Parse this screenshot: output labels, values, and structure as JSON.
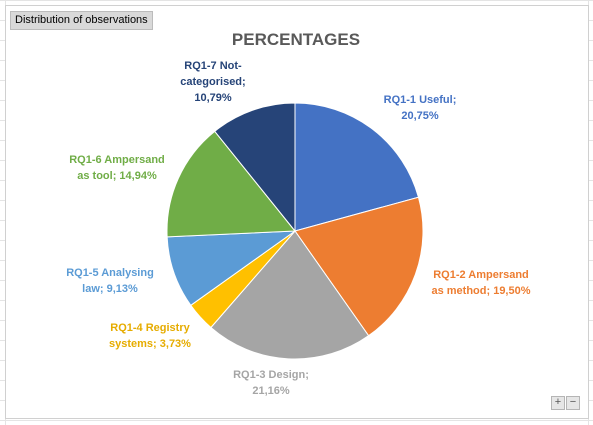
{
  "sheet_tab": {
    "label": "Distribution of observations"
  },
  "zoom": {
    "plus": "+",
    "minus": "−"
  },
  "chart_data": {
    "type": "pie",
    "title": "PERCENTAGES",
    "start_angle_deg": 0,
    "direction": "clockwise",
    "slices": [
      {
        "name": "RQ1-1 Useful",
        "value": 20.75,
        "label_lines": [
          "RQ1-1 Useful;",
          "20,75%"
        ],
        "color": "#4472c4",
        "label_color": "#4472c4"
      },
      {
        "name": "RQ1-2 Ampersand as method",
        "value": 19.5,
        "label_lines": [
          "RQ1-2 Ampersand",
          "as method; 19,50%"
        ],
        "color": "#ed7d31",
        "label_color": "#ed7d31"
      },
      {
        "name": "RQ1-3 Design",
        "value": 21.16,
        "label_lines": [
          "RQ1-3 Design;",
          "21,16%"
        ],
        "color": "#a5a5a5",
        "label_color": "#a5a5a5"
      },
      {
        "name": "RQ1-4 Registry systems",
        "value": 3.73,
        "label_lines": [
          "RQ1-4 Registry",
          "systems; 3,73%"
        ],
        "color": "#ffc000",
        "label_color": "#e6ac00"
      },
      {
        "name": "RQ1-5 Analysing law",
        "value": 9.13,
        "label_lines": [
          "RQ1-5 Analysing",
          "law; 9,13%"
        ],
        "color": "#5b9bd5",
        "label_color": "#5b9bd5"
      },
      {
        "name": "RQ1-6 Ampersand as tool",
        "value": 14.94,
        "label_lines": [
          "RQ1-6 Ampersand",
          "as tool; 14,94%"
        ],
        "color": "#70ad47",
        "label_color": "#70ad47"
      },
      {
        "name": "RQ1-7 Not-categorised",
        "value": 10.79,
        "label_lines": [
          "RQ1-7 Not-",
          "categorised;",
          "10,79%"
        ],
        "color": "#264478",
        "label_color": "#264478"
      }
    ]
  }
}
